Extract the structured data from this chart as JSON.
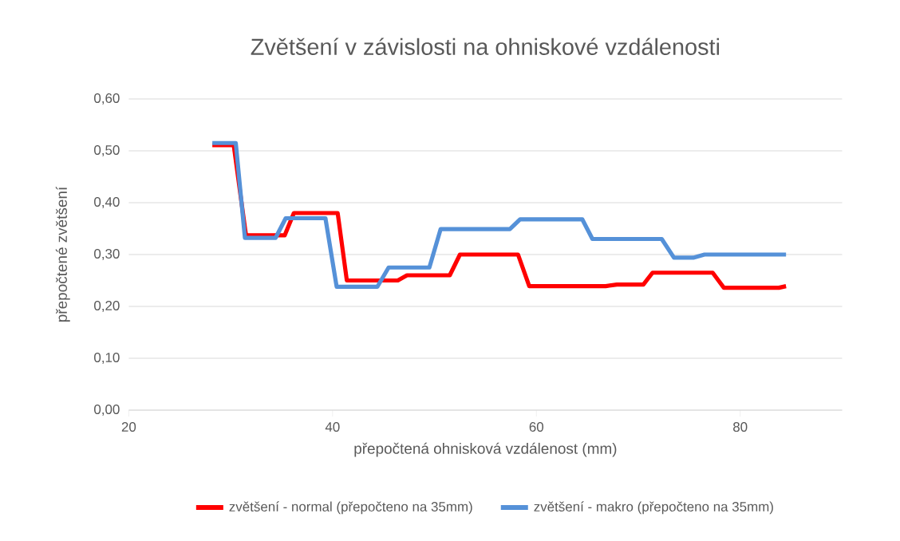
{
  "chart_data": {
    "type": "line",
    "title": "Zvětšení v závislosti na ohniskové vzdálenosti",
    "xlabel": "přepočtená ohnisková vzdálenost (mm)",
    "ylabel": "přepočtené zvětšení",
    "xlim": [
      20,
      90
    ],
    "xticks": [
      20,
      40,
      60,
      80
    ],
    "ylim": [
      0,
      0.6
    ],
    "yticks": [
      {
        "value": 0,
        "label": "0,00"
      },
      {
        "value": 0.1,
        "label": "0,10"
      },
      {
        "value": 0.2,
        "label": "0,20"
      },
      {
        "value": 0.3,
        "label": "0,30"
      },
      {
        "value": 0.4,
        "label": "0,40"
      },
      {
        "value": 0.5,
        "label": "0,50"
      },
      {
        "value": 0.6,
        "label": "0,60"
      }
    ],
    "grid": "y",
    "legend": "bottom",
    "marker": "none",
    "line_style": "solid",
    "series": [
      {
        "name": "zvětšení - normal (přepočteno na 35mm)",
        "color": "#ff0000",
        "x": [
          28.2,
          30.3,
          31.5,
          35.3,
          36.2,
          40.5,
          41.4,
          46.4,
          47.3,
          51.5,
          52.5,
          58.2,
          59.3,
          66.8,
          67.9,
          70.5,
          71.4,
          77.3,
          78.4,
          83.8,
          84.5
        ],
        "values": [
          0.511,
          0.511,
          0.337,
          0.337,
          0.38,
          0.38,
          0.25,
          0.25,
          0.26,
          0.26,
          0.3,
          0.3,
          0.239,
          0.239,
          0.242,
          0.242,
          0.265,
          0.265,
          0.236,
          0.236,
          0.239
        ]
      },
      {
        "name": "zvětšení - makro (přepočteno na 35mm)",
        "color": "#5591d8",
        "x": [
          28.2,
          30.5,
          31.4,
          34.4,
          35.4,
          39.3,
          40.4,
          44.4,
          45.5,
          49.5,
          50.6,
          57.4,
          58.4,
          64.5,
          65.5,
          72.3,
          73.5,
          75.4,
          76.5,
          84.5
        ],
        "values": [
          0.515,
          0.515,
          0.332,
          0.332,
          0.37,
          0.37,
          0.238,
          0.238,
          0.275,
          0.275,
          0.349,
          0.349,
          0.368,
          0.368,
          0.33,
          0.33,
          0.294,
          0.294,
          0.3,
          0.3
        ]
      }
    ]
  }
}
